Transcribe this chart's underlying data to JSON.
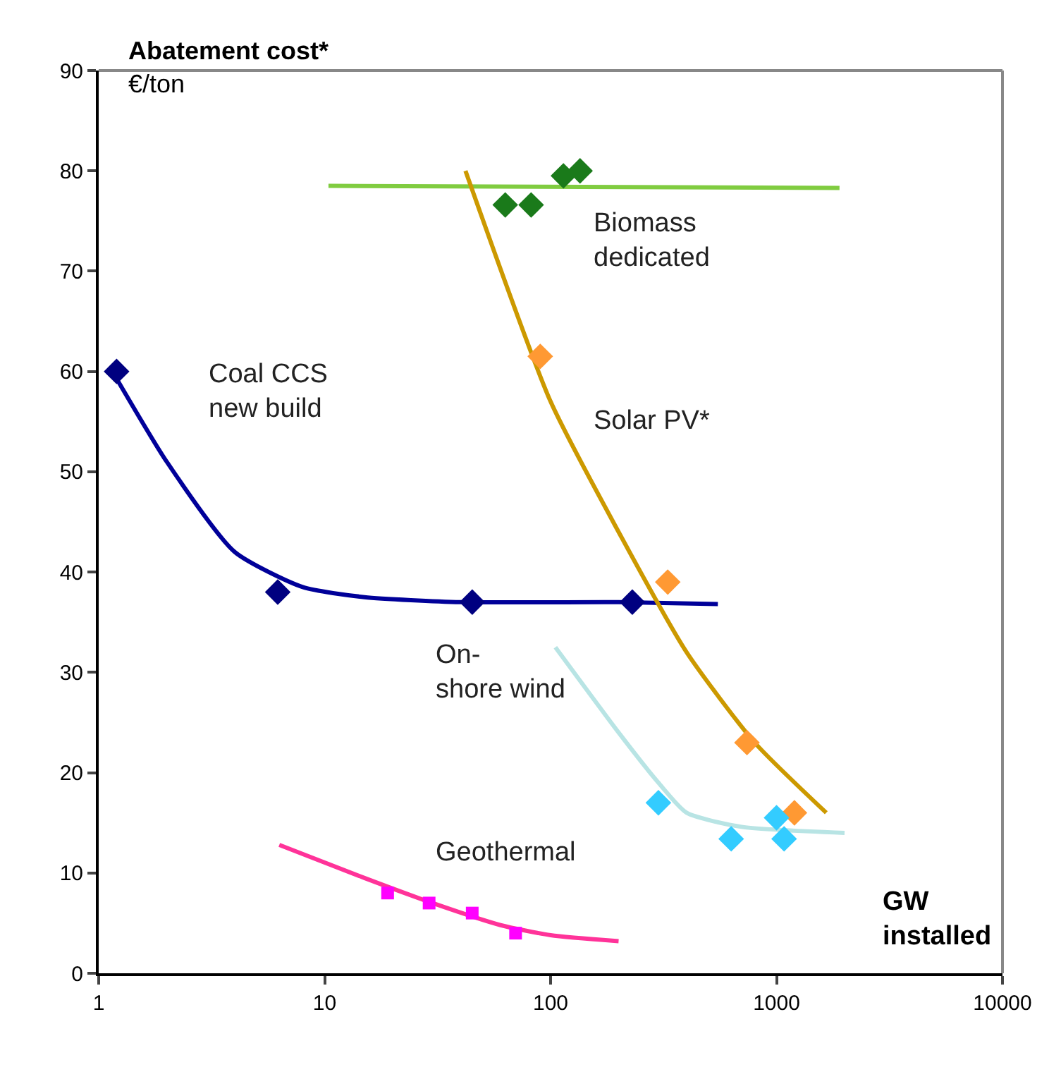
{
  "chart_data": {
    "type": "scatter",
    "ylabel": "Abatement cost*\n€/ton",
    "xlabel": "GW installed",
    "log": "x",
    "xlim": [
      1,
      10000
    ],
    "xticks": [
      1,
      10,
      100,
      1000,
      10000
    ],
    "ylim": [
      0,
      90
    ],
    "yticks": [
      0,
      10,
      20,
      30,
      40,
      50,
      60,
      70,
      80,
      90
    ],
    "grid": false,
    "legend": false,
    "series": [
      {
        "type": "line",
        "color": "#000099",
        "x": [
          1.15,
          2,
          4,
          8,
          15,
          40,
          200,
          550
        ],
        "values": [
          60,
          51,
          42,
          38.5,
          37.5,
          37,
          37,
          36.8
        ]
      },
      {
        "name": "Coal CCS\nnew build",
        "marker": "diamond",
        "color": "#000080",
        "x": [
          1.2,
          6.2,
          45,
          230
        ],
        "values": [
          60,
          38,
          37,
          37
        ]
      },
      {
        "type": "line",
        "color": "#80cc40",
        "x": [
          10.4,
          1900
        ],
        "values": [
          78.5,
          78.3
        ]
      },
      {
        "name": "Biomass\ndedicated",
        "marker": "diamond",
        "color": "#1a7a1a",
        "x": [
          63,
          82,
          114,
          135
        ],
        "values": [
          76.6,
          76.6,
          79.5,
          80
        ]
      },
      {
        "type": "line",
        "color": "#cc9900",
        "x": [
          42,
          100,
          200,
          400,
          800,
          1660
        ],
        "values": [
          80,
          57,
          44,
          32,
          23,
          16
        ]
      },
      {
        "name": "Solar PV*",
        "marker": "diamond",
        "color": "#ff9933",
        "x": [
          90,
          330,
          740,
          1200
        ],
        "values": [
          61.5,
          39,
          23,
          16
        ]
      },
      {
        "type": "line",
        "name": "On-\nshore wind",
        "color": "#b8e4e4",
        "x": [
          105,
          200,
          300,
          400,
          700,
          2000
        ],
        "values": [
          32.5,
          24,
          19,
          16,
          14.6,
          14
        ]
      },
      {
        "marker": "diamond",
        "color": "#33ccff",
        "x": [
          300,
          630,
          1000,
          1080
        ],
        "values": [
          17,
          13.4,
          15.5,
          13.4
        ]
      },
      {
        "type": "line",
        "color": "#ff3399",
        "x": [
          6.3,
          15,
          30,
          60,
          100,
          200
        ],
        "values": [
          12.8,
          9.5,
          7,
          4.8,
          3.8,
          3.2
        ]
      },
      {
        "name": "Geothermal",
        "marker": "square",
        "color": "#ff00ff",
        "x": [
          19,
          29,
          45,
          70
        ],
        "values": [
          8,
          7,
          6,
          4
        ]
      }
    ]
  }
}
